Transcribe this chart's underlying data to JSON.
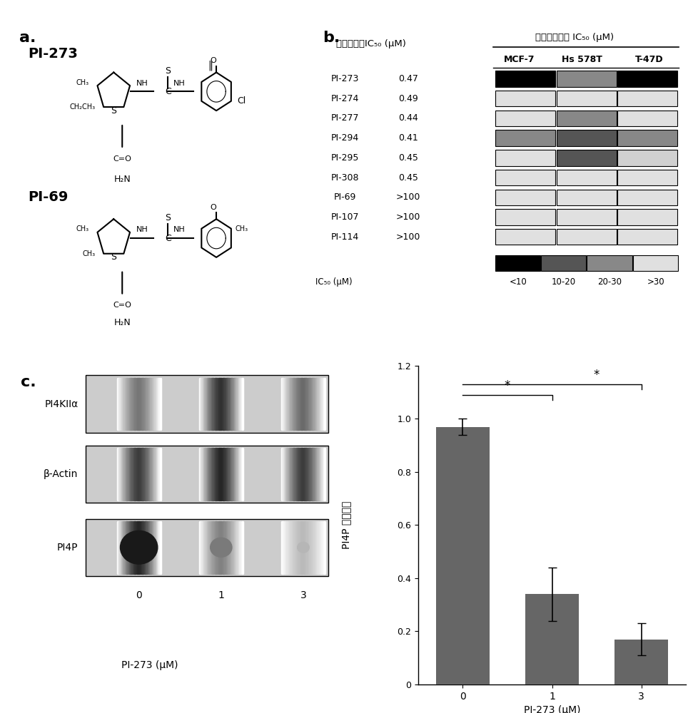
{
  "panel_a_label": "a.",
  "panel_b_label": "b.",
  "panel_c_label": "c.",
  "title_in_vitro": "体外酶活性IC₅₀ (μM)",
  "title_in_vivo": "体内细胞活力 IC₅₀ (μM)",
  "cell_lines": [
    "MCF-7",
    "Hs 578T",
    "T-47D"
  ],
  "compounds": [
    "PI-273",
    "PI-274",
    "PI-277",
    "PI-294",
    "PI-295",
    "PI-308",
    "PI-69",
    "PI-107",
    "PI-114"
  ],
  "ic50_values": [
    "0.47",
    "0.49",
    "0.44",
    "0.41",
    "0.45",
    "0.45",
    ">100",
    ">100",
    ">100"
  ],
  "cell_colors": {
    "PI-273": [
      "#000000",
      "#888888",
      "#000000"
    ],
    "PI-274": [
      "#e0e0e0",
      "#e0e0e0",
      "#e0e0e0"
    ],
    "PI-277": [
      "#e0e0e0",
      "#888888",
      "#e0e0e0"
    ],
    "PI-294": [
      "#888888",
      "#555555",
      "#888888"
    ],
    "PI-295": [
      "#e0e0e0",
      "#555555",
      "#d0d0d0"
    ],
    "PI-308": [
      "#e0e0e0",
      "#e0e0e0",
      "#e0e0e0"
    ],
    "PI-69": [
      "#e0e0e0",
      "#e0e0e0",
      "#e0e0e0"
    ],
    "PI-107": [
      "#e0e0e0",
      "#e0e0e0",
      "#e0e0e0"
    ],
    "PI-114": [
      "#e0e0e0",
      "#e0e0e0",
      "#e0e0e0"
    ]
  },
  "legend_colors": [
    "#000000",
    "#555555",
    "#888888",
    "#e0e0e0"
  ],
  "legend_labels": [
    "<10",
    "10-20",
    "20-30",
    ">30"
  ],
  "bar_values": [
    0.97,
    0.34,
    0.17
  ],
  "bar_errors": [
    0.03,
    0.1,
    0.06
  ],
  "bar_color": "#666666",
  "bar_categories": [
    "0",
    "1",
    "3"
  ],
  "bar_xlabel": "PI-273 (μM)",
  "bar_ylabel": "PI4P 相对含量",
  "bar_ylim": [
    0,
    1.2
  ],
  "bar_yticks": [
    0,
    0.2,
    0.4,
    0.6,
    0.8,
    1.0,
    1.2
  ],
  "pi273_label": "PI-273",
  "pi69_label": "PI-69",
  "wb_label_PI4KIIa": "PI4KIIα",
  "wb_label_bActin": "β-Actin",
  "wb_label_PI4P": "PI4P",
  "wb_xlabel": "PI-273 (μM)",
  "wb_xvals": [
    "0",
    "1",
    "3"
  ]
}
